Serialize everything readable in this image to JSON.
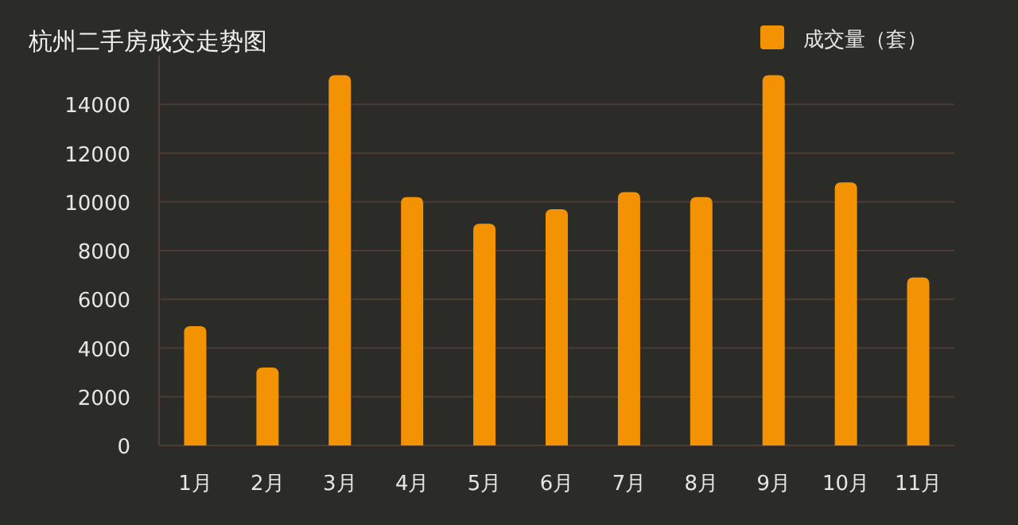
{
  "chart_data": {
    "type": "bar",
    "title": "杭州二手房成交走势图",
    "categories": [
      "1月",
      "2月",
      "3月",
      "4月",
      "5月",
      "6月",
      "7月",
      "8月",
      "9月",
      "10月",
      "11月"
    ],
    "series": [
      {
        "name": "成交量（套）",
        "color": "#f39203",
        "values": [
          4900,
          3200,
          15200,
          10200,
          9100,
          9700,
          10400,
          10200,
          15200,
          10800,
          6900
        ]
      }
    ],
    "ylim": [
      0,
      16000
    ],
    "yticks": [
      0,
      2000,
      4000,
      6000,
      8000,
      10000,
      12000,
      14000
    ],
    "grid": "y",
    "legend": "top right"
  }
}
